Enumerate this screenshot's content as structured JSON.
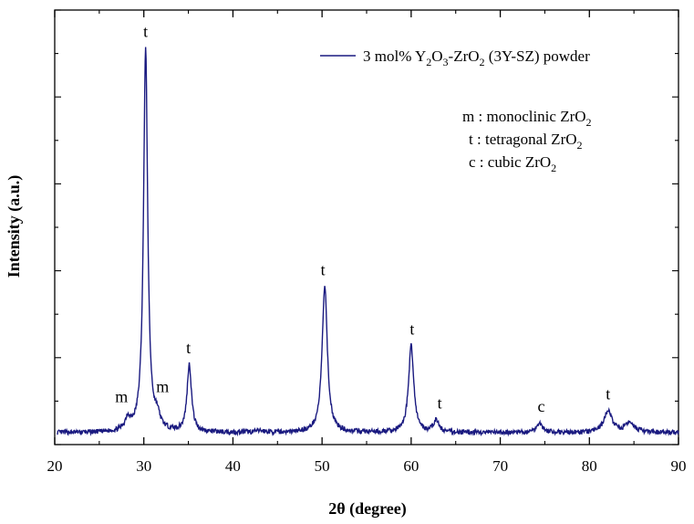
{
  "chart_data": {
    "type": "line",
    "title": "",
    "xlabel": "2θ (degree)",
    "ylabel": "Intensity (a.u.)",
    "xlim": [
      20,
      90
    ],
    "ylim": [
      0,
      1.1
    ],
    "xticks": [
      20,
      30,
      40,
      50,
      60,
      70,
      80,
      90
    ],
    "xtick_labels": [
      "20",
      "30",
      "40",
      "50",
      "60",
      "70",
      "80",
      "90"
    ],
    "y_tick_labels_shown": false,
    "grid": false,
    "legend": {
      "position": "top-right",
      "entries": [
        {
          "name": "3 mol% Y2O3-ZrO2 (3Y-SZ) powder",
          "parts": [
            "3 mol% Y",
            "2",
            "O",
            "3",
            "-ZrO",
            "2",
            " (3Y-SZ) powder"
          ],
          "color": "#1a1a80"
        }
      ]
    },
    "phase_key": [
      {
        "line": 1,
        "symbol": "m",
        "text": "monoclinic ZrO",
        "sub": "2"
      },
      {
        "line": 2,
        "symbol": "t",
        "text": "tetragonal ZrO",
        "sub": "2"
      },
      {
        "line": 3,
        "symbol": "c",
        "text": "cubic ZrO",
        "sub": "2"
      }
    ],
    "baseline": 0.03,
    "noise_amplitude": 0.006,
    "sample_step": 0.05,
    "peaks": [
      {
        "center": 28.2,
        "height": 0.03,
        "width": 0.35,
        "label": "m",
        "label_x": 27.5
      },
      {
        "center": 30.2,
        "height": 0.97,
        "width": 0.28,
        "label": "t",
        "label_x": 30.2
      },
      {
        "center": 31.5,
        "height": 0.03,
        "width": 0.35,
        "label": "m",
        "label_x": 32.1
      },
      {
        "center": 35.1,
        "height": 0.17,
        "width": 0.3,
        "label": "t",
        "label_x": 35.0
      },
      {
        "center": 43.0,
        "height": 0.004,
        "width": 0.6,
        "label": "",
        "label_x": 43.0
      },
      {
        "center": 50.3,
        "height": 0.37,
        "width": 0.35,
        "label": "t",
        "label_x": 50.1
      },
      {
        "center": 60.0,
        "height": 0.22,
        "width": 0.35,
        "label": "t",
        "label_x": 60.1
      },
      {
        "center": 62.8,
        "height": 0.03,
        "width": 0.35,
        "label": "t",
        "label_x": 63.2
      },
      {
        "center": 74.4,
        "height": 0.025,
        "width": 0.4,
        "label": "c",
        "label_x": 74.6
      },
      {
        "center": 82.1,
        "height": 0.055,
        "width": 0.55,
        "label": "t",
        "label_x": 82.1
      },
      {
        "center": 84.6,
        "height": 0.025,
        "width": 0.6,
        "label": "",
        "label_x": 84.6
      }
    ],
    "series": [
      {
        "name": "3 mol% Y2O3-ZrO2 (3Y-SZ) powder",
        "color": "#1a1a80"
      }
    ]
  }
}
